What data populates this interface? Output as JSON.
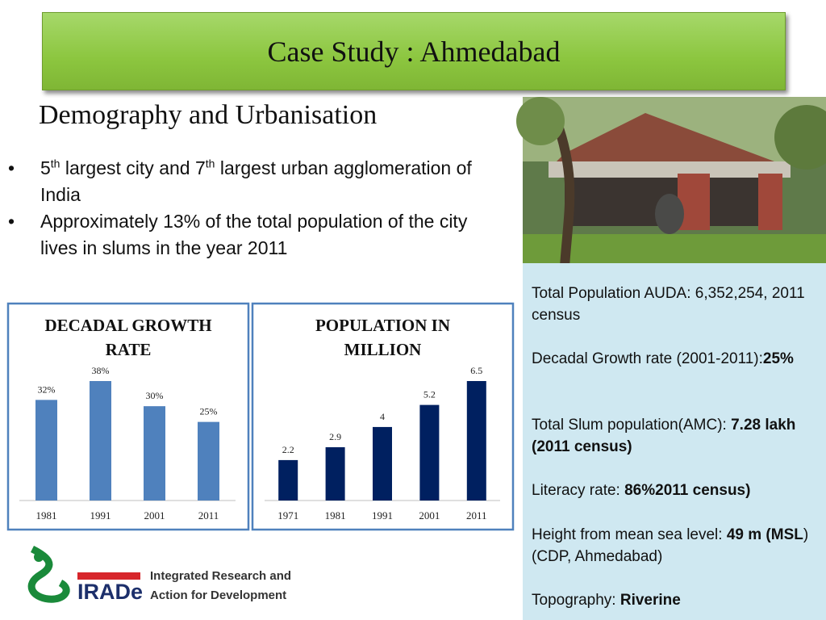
{
  "header": {
    "title": "Case Study : Ahmedabad"
  },
  "section": {
    "heading": "Demography and Urbanisation",
    "bullets": [
      [
        "5",
        "th",
        "  largest city and 7",
        "th",
        " largest urban agglomeration of India"
      ],
      [
        "Approximately 13% of the total population of the city lives in slums in the year 2011"
      ]
    ]
  },
  "chart_data": [
    {
      "type": "bar",
      "title": "DECADAL GROWTH RATE",
      "categories": [
        "1981",
        "1991",
        "2001",
        "2011"
      ],
      "values": [
        32,
        38,
        30,
        25
      ],
      "value_labels": [
        "32%",
        "38%",
        "30%",
        "25%"
      ],
      "color": "#4f81bd"
    },
    {
      "type": "bar",
      "title": "POPULATION IN MILLION",
      "categories": [
        "1971",
        "1981",
        "1991",
        "2001",
        "2011"
      ],
      "values": [
        2.2,
        2.9,
        4,
        5.2,
        6.5
      ],
      "color": "#002060"
    }
  ],
  "info": {
    "items": [
      [
        {
          "text": "Total Population AUDA:  6,352,254, 2011 census",
          "bold": false
        }
      ],
      [
        {
          "text": "Decadal Growth rate (2001-2011):",
          "bold": false
        },
        {
          "text": "25%",
          "bold": true
        }
      ],
      [
        {
          "text": "Total Slum population(AMC):  ",
          "bold": false
        },
        {
          "text": "7.28 lakh (2011 census)",
          "bold": true
        }
      ],
      [
        {
          "text": "Literacy rate:  ",
          "bold": false
        },
        {
          "text": "86%2011 census)",
          "bold": true
        }
      ],
      [
        {
          "text": "Height  from mean sea level: ",
          "bold": false
        },
        {
          "text": "49 m (MSL",
          "bold": true
        },
        {
          "text": ")(CDP, Ahmedabad)",
          "bold": false
        }
      ],
      [
        {
          "text": "Topography: ",
          "bold": false
        },
        {
          "text": "Riverine",
          "bold": true
        }
      ]
    ]
  },
  "logo": {
    "mark": "IRADe",
    "line1": "Integrated Research and",
    "line2": "Action for Development"
  }
}
